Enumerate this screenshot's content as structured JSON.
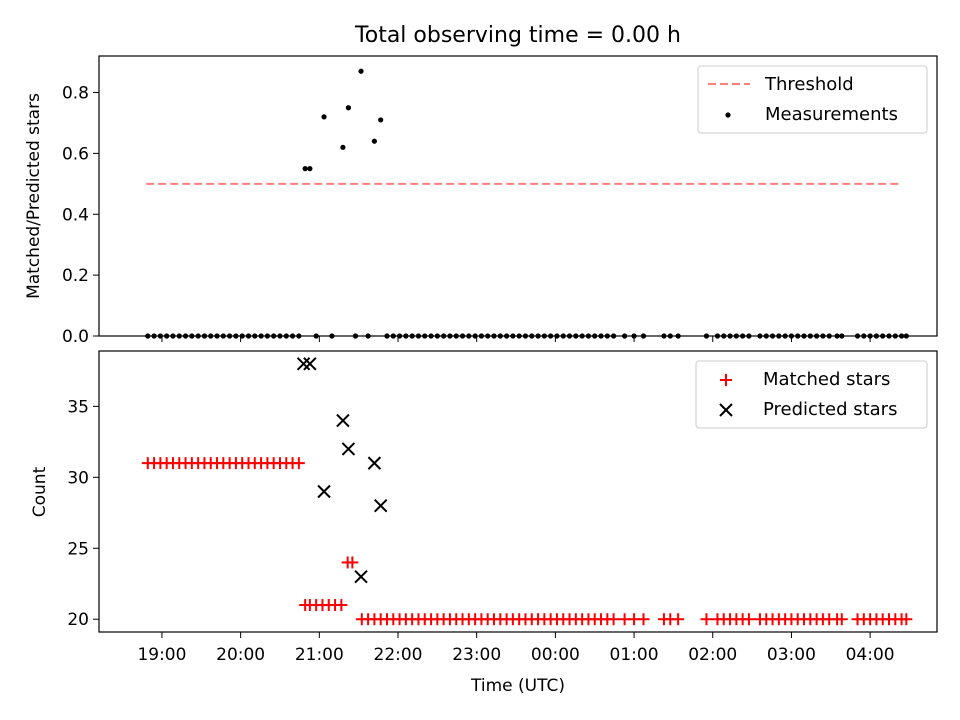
{
  "chart_data": [
    {
      "type": "scatter",
      "title": "Total observing time = 0.00 h",
      "xlabel": "",
      "ylabel": "Matched/Predicted stars",
      "xlim_hours": [
        18.2,
        28.85
      ],
      "ylim": [
        0,
        0.92
      ],
      "yticks": [
        0.0,
        0.2,
        0.4,
        0.6,
        0.8
      ],
      "ytick_labels": [
        "0.0",
        "0.2",
        "0.4",
        "0.6",
        "0.8"
      ],
      "legend_position": "top-right",
      "threshold": {
        "name": "Threshold",
        "value": 0.5,
        "x_range_hours": [
          18.8,
          28.4
        ],
        "color": "#ff7f7f"
      },
      "series": [
        {
          "name": "Measurements",
          "color": "#000000",
          "x_hours": [
            18.82,
            18.9,
            18.98,
            19.06,
            19.14,
            19.22,
            19.3,
            19.38,
            19.46,
            19.54,
            19.62,
            19.7,
            19.78,
            19.86,
            19.94,
            20.02,
            20.1,
            20.18,
            20.26,
            20.34,
            20.42,
            20.5,
            20.58,
            20.66,
            20.74,
            20.82,
            20.88,
            20.96,
            21.06,
            21.16,
            21.3,
            21.37,
            21.46,
            21.53,
            21.62,
            21.7,
            21.78,
            21.86,
            21.94,
            22.02,
            22.1,
            22.18,
            22.26,
            22.34,
            22.42,
            22.5,
            22.58,
            22.66,
            22.74,
            22.82,
            22.9,
            22.98,
            23.06,
            23.14,
            23.22,
            23.3,
            23.38,
            23.46,
            23.54,
            23.62,
            23.7,
            23.78,
            23.86,
            23.94,
            24.02,
            24.1,
            24.18,
            24.26,
            24.34,
            24.42,
            24.5,
            24.58,
            24.66,
            24.74,
            24.88,
            25.0,
            25.12,
            25.38,
            25.46,
            25.56,
            25.92,
            26.06,
            26.14,
            26.22,
            26.3,
            26.38,
            26.46,
            26.6,
            26.68,
            26.76,
            26.84,
            26.92,
            27.0,
            27.08,
            27.16,
            27.24,
            27.32,
            27.4,
            27.48,
            27.58,
            27.64,
            27.84,
            27.92,
            28.0,
            28.08,
            28.16,
            28.24,
            28.32,
            28.4,
            28.46
          ],
          "y": [
            0,
            0,
            0,
            0,
            0,
            0,
            0,
            0,
            0,
            0,
            0,
            0,
            0,
            0,
            0,
            0,
            0,
            0,
            0,
            0,
            0,
            0,
            0,
            0,
            0,
            0.55,
            0.55,
            0,
            0.72,
            0,
            0.62,
            0.75,
            0,
            0.87,
            0,
            0.64,
            0.71,
            0,
            0,
            0,
            0,
            0,
            0,
            0,
            0,
            0,
            0,
            0,
            0,
            0,
            0,
            0,
            0,
            0,
            0,
            0,
            0,
            0,
            0,
            0,
            0,
            0,
            0,
            0,
            0,
            0,
            0,
            0,
            0,
            0,
            0,
            0,
            0,
            0,
            0,
            0,
            0,
            0,
            0,
            0,
            0,
            0,
            0,
            0,
            0,
            0,
            0,
            0,
            0,
            0,
            0,
            0,
            0,
            0,
            0,
            0,
            0,
            0,
            0,
            0,
            0,
            0,
            0,
            0,
            0,
            0,
            0,
            0,
            0,
            0
          ]
        }
      ]
    },
    {
      "type": "scatter",
      "title": "",
      "xlabel": "Time (UTC)",
      "ylabel": "Count",
      "xlim_hours": [
        18.2,
        28.85
      ],
      "ylim": [
        19.1,
        38.9
      ],
      "yticks": [
        20,
        25,
        30,
        35
      ],
      "ytick_labels": [
        "20",
        "25",
        "30",
        "35"
      ],
      "xticks_hours": [
        19,
        20,
        21,
        22,
        23,
        24,
        25,
        26,
        27,
        28
      ],
      "xtick_labels": [
        "19:00",
        "20:00",
        "21:00",
        "22:00",
        "23:00",
        "00:00",
        "01:00",
        "02:00",
        "03:00",
        "04:00"
      ],
      "legend_position": "top-right",
      "series": [
        {
          "name": "Matched stars",
          "marker": "+",
          "color": "#ff0000",
          "x_hours": [
            18.82,
            18.9,
            18.98,
            19.06,
            19.14,
            19.22,
            19.3,
            19.38,
            19.46,
            19.54,
            19.62,
            19.7,
            19.78,
            19.86,
            19.94,
            20.02,
            20.1,
            20.18,
            20.26,
            20.34,
            20.42,
            20.5,
            20.58,
            20.66,
            20.74,
            20.82,
            20.88,
            20.96,
            21.04,
            21.12,
            21.2,
            21.28,
            21.36,
            21.42,
            21.54,
            21.62,
            21.7,
            21.78,
            21.86,
            21.94,
            22.02,
            22.1,
            22.18,
            22.26,
            22.34,
            22.42,
            22.5,
            22.58,
            22.66,
            22.74,
            22.82,
            22.9,
            22.98,
            23.06,
            23.14,
            23.22,
            23.3,
            23.38,
            23.46,
            23.54,
            23.62,
            23.7,
            23.78,
            23.86,
            23.94,
            24.02,
            24.1,
            24.18,
            24.26,
            24.34,
            24.42,
            24.5,
            24.58,
            24.66,
            24.74,
            24.88,
            25.0,
            25.12,
            25.38,
            25.46,
            25.56,
            25.92,
            26.06,
            26.14,
            26.22,
            26.3,
            26.38,
            26.46,
            26.6,
            26.68,
            26.76,
            26.84,
            26.92,
            27.0,
            27.08,
            27.16,
            27.24,
            27.32,
            27.4,
            27.48,
            27.58,
            27.64,
            27.84,
            27.92,
            28.0,
            28.08,
            28.16,
            28.24,
            28.32,
            28.4,
            28.46
          ],
          "y": [
            31,
            31,
            31,
            31,
            31,
            31,
            31,
            31,
            31,
            31,
            31,
            31,
            31,
            31,
            31,
            31,
            31,
            31,
            31,
            31,
            31,
            31,
            31,
            31,
            31,
            21,
            21,
            21,
            21,
            21,
            21,
            21,
            24,
            24,
            20,
            20,
            20,
            20,
            20,
            20,
            20,
            20,
            20,
            20,
            20,
            20,
            20,
            20,
            20,
            20,
            20,
            20,
            20,
            20,
            20,
            20,
            20,
            20,
            20,
            20,
            20,
            20,
            20,
            20,
            20,
            20,
            20,
            20,
            20,
            20,
            20,
            20,
            20,
            20,
            20,
            20,
            20,
            20,
            20,
            20,
            20,
            20,
            20,
            20,
            20,
            20,
            20,
            20,
            20,
            20,
            20,
            20,
            20,
            20,
            20,
            20,
            20,
            20,
            20,
            20,
            20,
            20,
            20,
            20,
            20,
            20,
            20,
            20,
            20,
            20,
            20
          ]
        },
        {
          "name": "Predicted stars",
          "marker": "x",
          "color": "#000000",
          "x_hours": [
            20.8,
            20.88,
            21.06,
            21.3,
            21.37,
            21.53,
            21.7,
            21.78
          ],
          "y": [
            38,
            38,
            29,
            34,
            32,
            23,
            31,
            28
          ]
        }
      ]
    }
  ]
}
